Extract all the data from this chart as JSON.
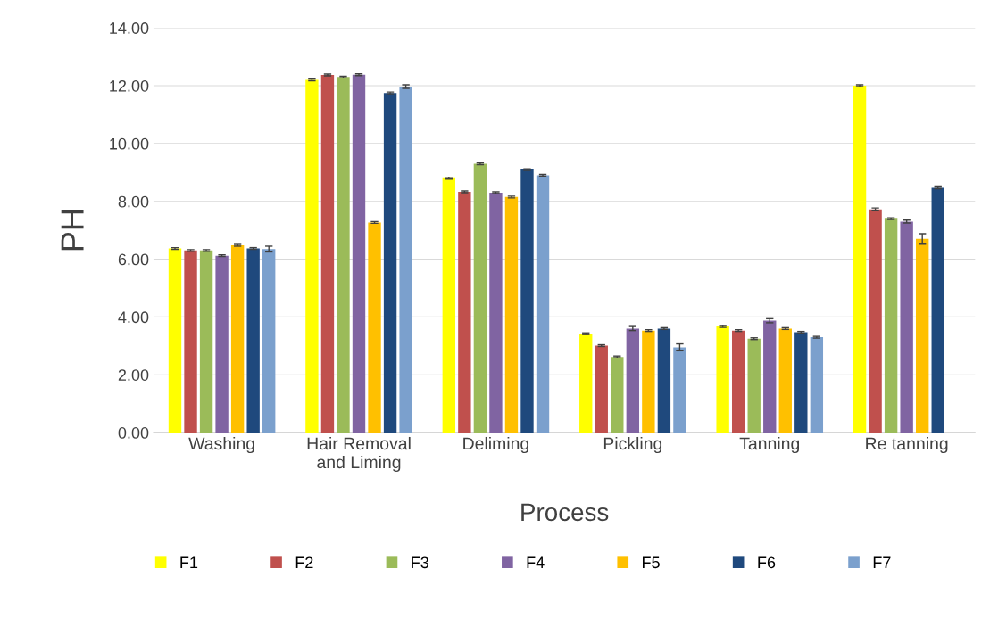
{
  "chart_data": {
    "type": "bar",
    "xlabel": "Process",
    "ylabel": "PH",
    "categories": [
      "Washing",
      "Hair Removal\nand Liming",
      "Deliming",
      "Pickling",
      "Tanning",
      "Re tanning"
    ],
    "series": [
      {
        "name": "F1",
        "color": "#ffff00",
        "values": [
          6.37,
          12.2,
          8.8,
          3.42,
          3.67,
          12.0
        ],
        "errors": [
          0.03,
          0.03,
          0.03,
          0.03,
          0.03,
          0.03
        ]
      },
      {
        "name": "F2",
        "color": "#c0504d",
        "values": [
          6.3,
          12.37,
          8.33,
          3.01,
          3.53,
          7.72
        ],
        "errors": [
          0.03,
          0.03,
          0.03,
          0.03,
          0.03,
          0.05
        ]
      },
      {
        "name": "F3",
        "color": "#9bbb59",
        "values": [
          6.3,
          12.3,
          9.3,
          2.62,
          3.25,
          7.4
        ],
        "errors": [
          0.03,
          0.03,
          0.03,
          0.03,
          0.03,
          0.03
        ]
      },
      {
        "name": "F4",
        "color": "#8064a2",
        "values": [
          6.12,
          12.38,
          8.3,
          3.6,
          3.87,
          7.3
        ],
        "errors": [
          0.03,
          0.03,
          0.03,
          0.07,
          0.07,
          0.05
        ]
      },
      {
        "name": "F5",
        "color": "#ffc000",
        "values": [
          6.48,
          7.27,
          8.15,
          3.53,
          3.6,
          6.7
        ],
        "errors": [
          0.03,
          0.03,
          0.03,
          0.03,
          0.03,
          0.18
        ]
      },
      {
        "name": "F6",
        "color": "#1f497d",
        "values": [
          6.37,
          11.75,
          9.1,
          3.6,
          3.47,
          8.47
        ],
        "errors": [
          0.03,
          0.03,
          0.03,
          0.03,
          0.03,
          0.03
        ]
      },
      {
        "name": "F7",
        "color": "#7ba0cd",
        "values": [
          6.35,
          11.97,
          8.9,
          2.95,
          3.3,
          null
        ],
        "errors": [
          0.1,
          0.06,
          0.03,
          0.12,
          0.03,
          null
        ]
      }
    ],
    "ylim": [
      0,
      14
    ],
    "yticks": [
      {
        "value": 0,
        "label": "0.00"
      },
      {
        "value": 2,
        "label": "2.00"
      },
      {
        "value": 4,
        "label": "4.00"
      },
      {
        "value": 6,
        "label": "6.00"
      },
      {
        "value": 8,
        "label": "8.00"
      },
      {
        "value": 10,
        "label": "10.00"
      },
      {
        "value": 12,
        "label": "12.00"
      },
      {
        "value": 14,
        "label": "14.00"
      }
    ],
    "grid": "y",
    "legend": "bottom"
  }
}
